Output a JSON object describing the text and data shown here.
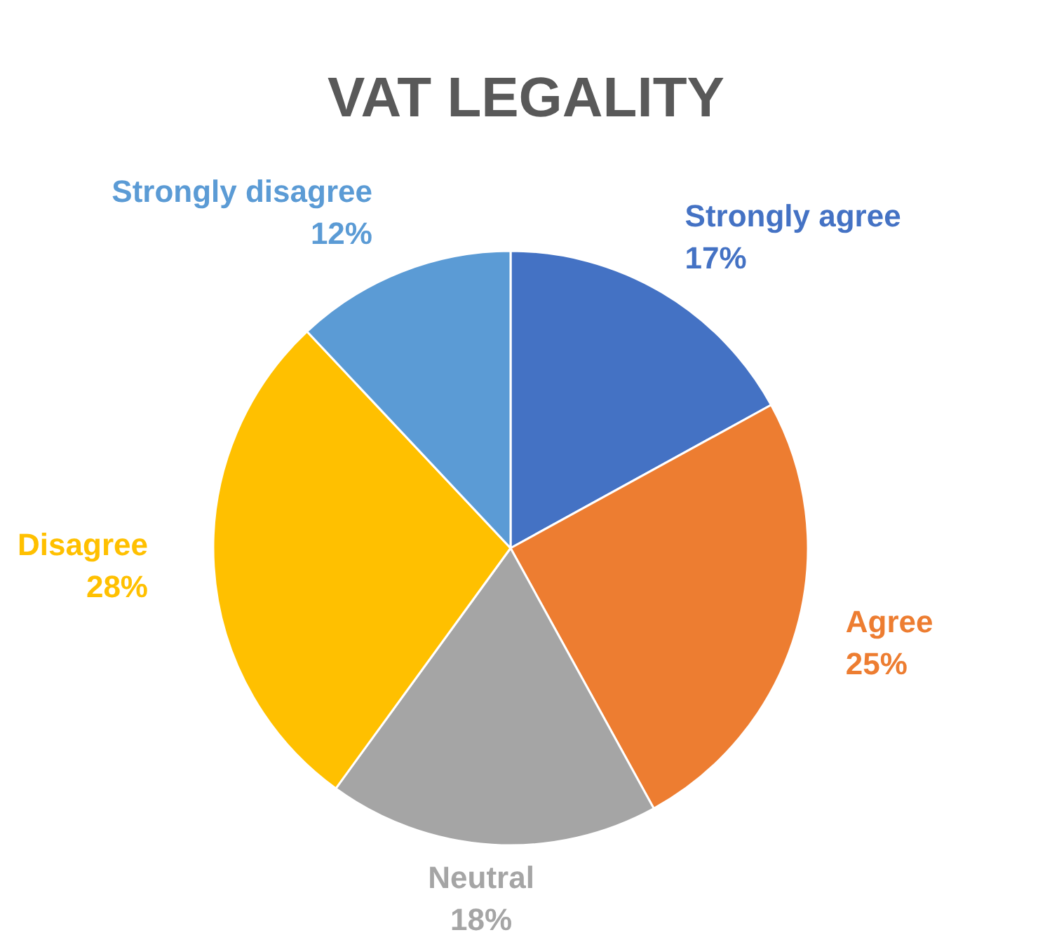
{
  "chart_data": {
    "type": "pie",
    "title": "VAT LEGALITY",
    "categories": [
      "Strongly agree",
      "Agree",
      "Neutral",
      "Disagree",
      "Strongly disagree"
    ],
    "values": [
      17,
      25,
      18,
      28,
      12
    ],
    "value_labels": [
      "17%",
      "25%",
      "18%",
      "28%",
      "12%"
    ],
    "colors": [
      "#4472c4",
      "#ed7d31",
      "#a5a5a5",
      "#ffc000",
      "#5b9bd5"
    ],
    "legend": false
  }
}
